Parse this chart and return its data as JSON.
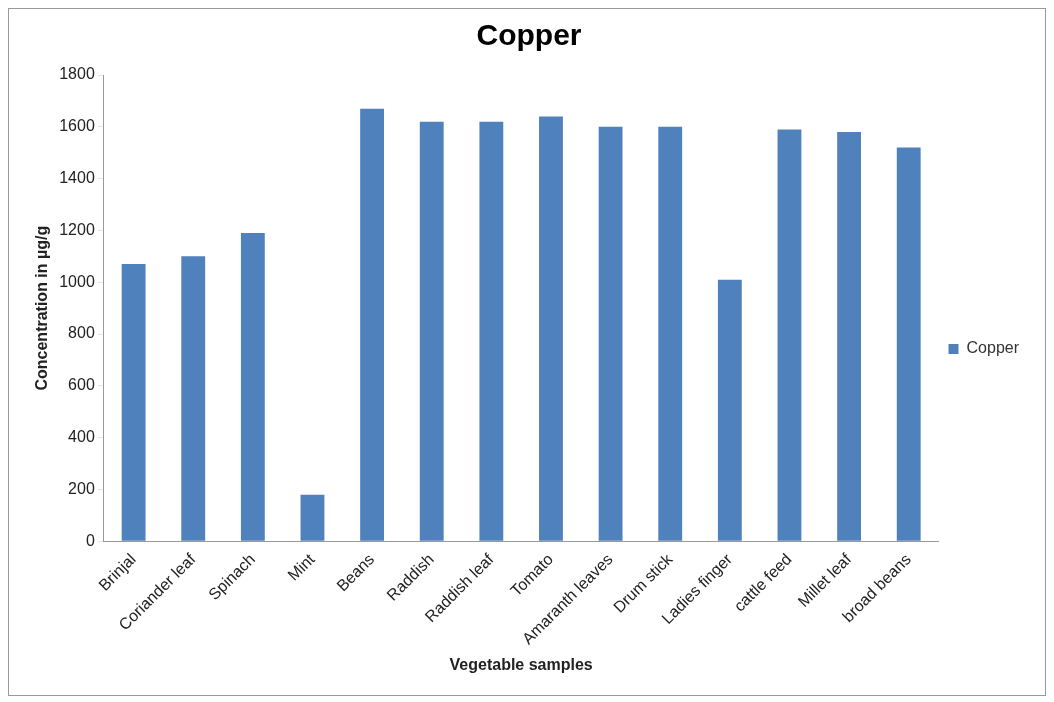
{
  "chart_data": {
    "type": "bar",
    "title": "Copper",
    "xlabel": "Vegetable samples",
    "ylabel": "Concentration in µg/g",
    "categories": [
      "Brinjal",
      "Coriander leaf",
      "Spinach",
      "Mint",
      "Beans",
      "Raddish",
      "Raddish leaf",
      "Tomato",
      "Amaranth leaves",
      "Drum stick",
      "Ladies finger",
      "cattle feed",
      "Millet leaf",
      "broad beans"
    ],
    "series": [
      {
        "name": "Copper",
        "color": "#4f81bd",
        "values": [
          1070,
          1100,
          1190,
          180,
          1670,
          1620,
          1620,
          1640,
          1600,
          1600,
          1010,
          1590,
          1580,
          1520
        ]
      }
    ],
    "ylim": [
      0,
      1800
    ],
    "yticks": [
      0,
      200,
      400,
      600,
      800,
      1000,
      1200,
      1400,
      1600,
      1800
    ],
    "grid": false,
    "legend": "right"
  }
}
